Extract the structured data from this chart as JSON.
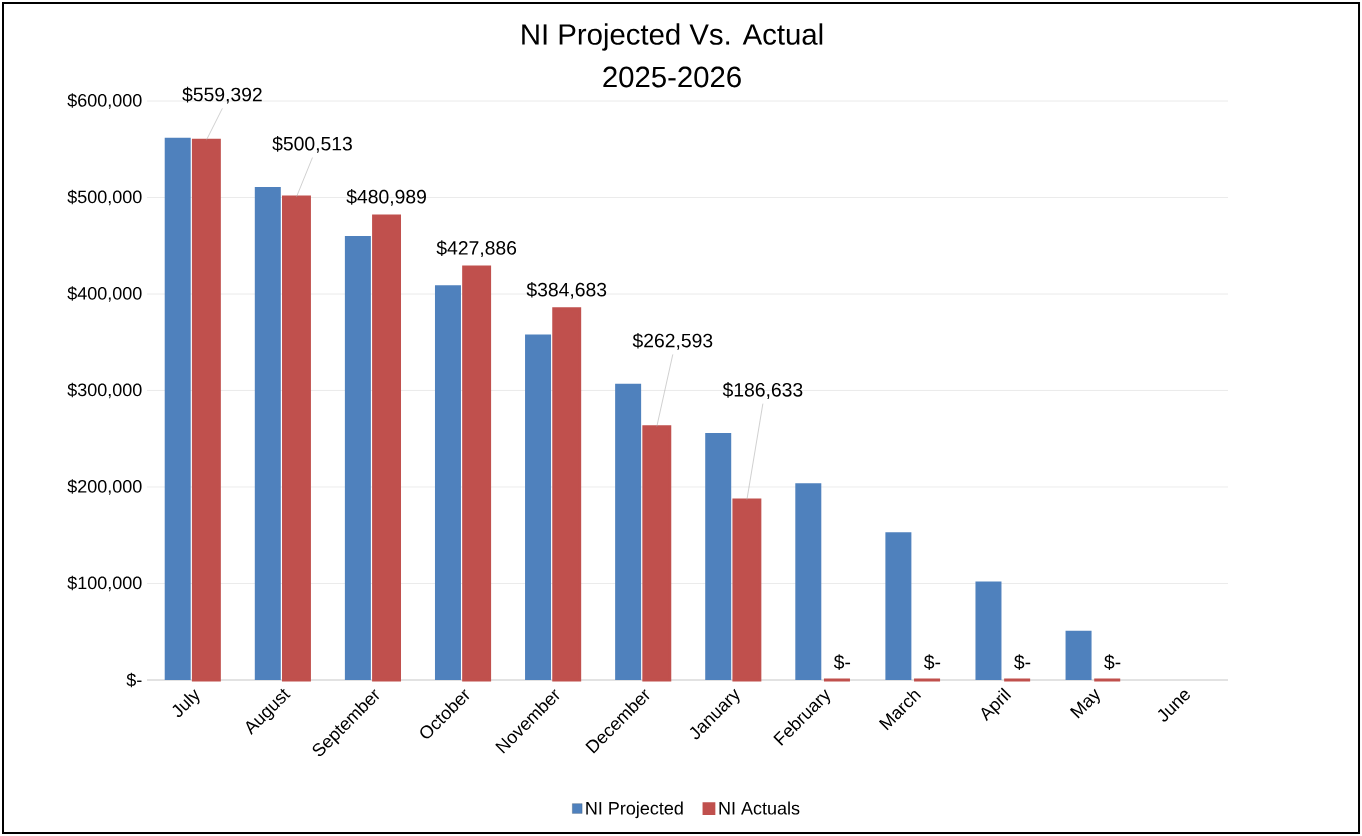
{
  "chart_data": {
    "type": "bar",
    "title": "NI Projected Vs. Actual",
    "subtitle": "2025-2026",
    "categories": [
      "July",
      "August",
      "September",
      "October",
      "November",
      "December",
      "January",
      "February",
      "March",
      "April",
      "May",
      "June"
    ],
    "series": [
      {
        "name": "NI Projected",
        "color": "#4f81bd",
        "values": [
          562000,
          511000,
          460000,
          409000,
          358000,
          307000,
          256000,
          204000,
          153000,
          102000,
          51000,
          0
        ]
      },
      {
        "name": "NI Actuals",
        "color": "#c0504d",
        "values": [
          559392,
          500513,
          480989,
          427886,
          384683,
          262593,
          186633,
          0,
          0,
          0,
          0,
          null
        ],
        "value_labels": [
          "$559,392",
          "$500,513",
          "$480,989",
          "$427,886",
          "$384,683",
          "$262,593",
          "$186,633",
          "$-",
          "$-",
          "$-",
          "$-",
          null
        ]
      }
    ],
    "ylim": [
      0,
      600000
    ],
    "yticks": [
      {
        "value": 0,
        "label": "$-"
      },
      {
        "value": 100000,
        "label": "$100,000"
      },
      {
        "value": 200000,
        "label": "$200,000"
      },
      {
        "value": 300000,
        "label": "$300,000"
      },
      {
        "value": 400000,
        "label": "$400,000"
      },
      {
        "value": 500000,
        "label": "$500,000"
      },
      {
        "value": 600000,
        "label": "$600,000"
      }
    ],
    "grid": "y",
    "legend": "bottom"
  }
}
